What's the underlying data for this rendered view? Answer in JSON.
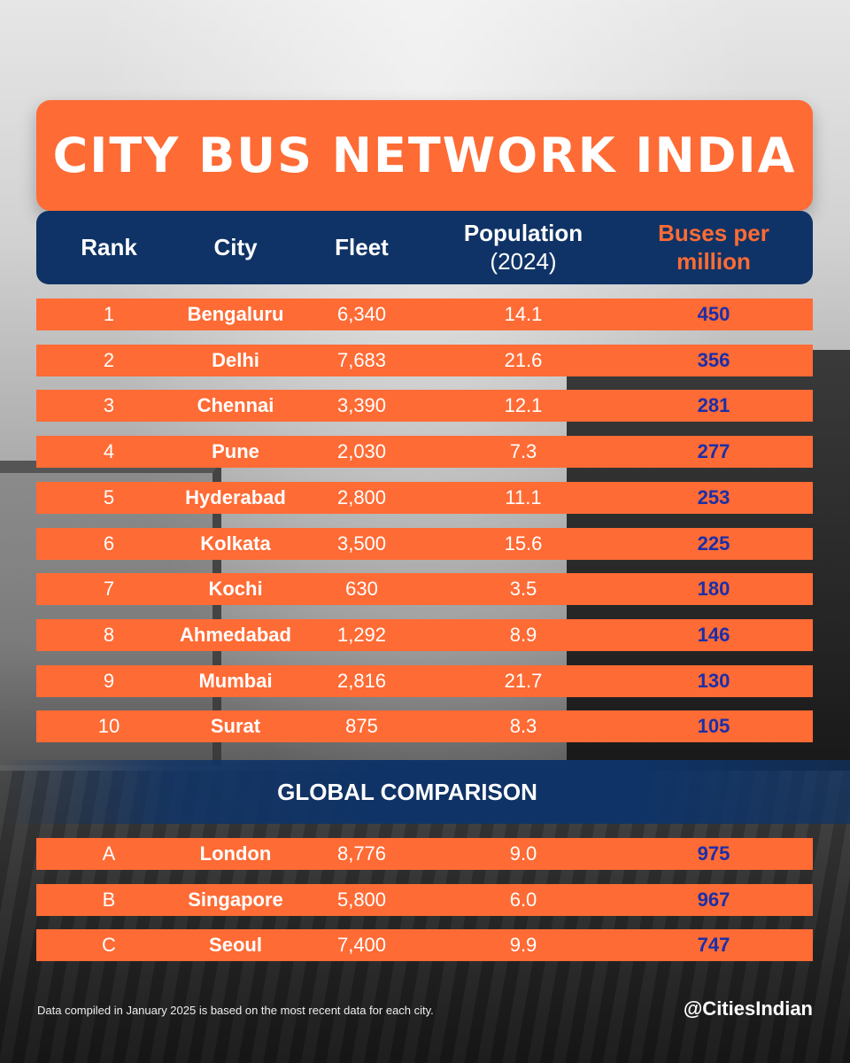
{
  "title": "CITY BUS NETWORK INDIA",
  "headers": {
    "rank": "Rank",
    "city": "City",
    "fleet": "Fleet",
    "population_line1": "Population",
    "population_line2": "(2024)",
    "bpm_line1": "Buses per",
    "bpm_line2": "million"
  },
  "india_rows": [
    {
      "rank": "1",
      "city": "Bengaluru",
      "fleet": "6,340",
      "population": "14.1",
      "bpm": "450"
    },
    {
      "rank": "2",
      "city": "Delhi",
      "fleet": "7,683",
      "population": "21.6",
      "bpm": "356"
    },
    {
      "rank": "3",
      "city": "Chennai",
      "fleet": "3,390",
      "population": "12.1",
      "bpm": "281"
    },
    {
      "rank": "4",
      "city": "Pune",
      "fleet": "2,030",
      "population": "7.3",
      "bpm": "277"
    },
    {
      "rank": "5",
      "city": "Hyderabad",
      "fleet": "2,800",
      "population": "11.1",
      "bpm": "253"
    },
    {
      "rank": "6",
      "city": "Kolkata",
      "fleet": "3,500",
      "population": "15.6",
      "bpm": "225"
    },
    {
      "rank": "7",
      "city": "Kochi",
      "fleet": "630",
      "population": "3.5",
      "bpm": "180"
    },
    {
      "rank": "8",
      "city": "Ahmedabad",
      "fleet": "1,292",
      "population": "8.9",
      "bpm": "146"
    },
    {
      "rank": "9",
      "city": "Mumbai",
      "fleet": "2,816",
      "population": "21.7",
      "bpm": "130"
    },
    {
      "rank": "10",
      "city": "Surat",
      "fleet": "875",
      "population": "8.3",
      "bpm": "105"
    }
  ],
  "global_heading": "GLOBAL COMPARISON",
  "global_rows": [
    {
      "rank": "A",
      "city": "London",
      "fleet": "8,776",
      "population": "9.0",
      "bpm": "975"
    },
    {
      "rank": "B",
      "city": "Singapore",
      "fleet": "5,800",
      "population": "6.0",
      "bpm": "967"
    },
    {
      "rank": "C",
      "city": "Seoul",
      "fleet": "7,400",
      "population": "9.9",
      "bpm": "747"
    }
  ],
  "footnote": "Data compiled in January 2025 is based on the most recent data for each city.",
  "handle": "@CitiesIndian",
  "colors": {
    "accent_orange": "#fe6b35",
    "navy": "#0f3366",
    "value_blue": "#1b2fa8"
  }
}
